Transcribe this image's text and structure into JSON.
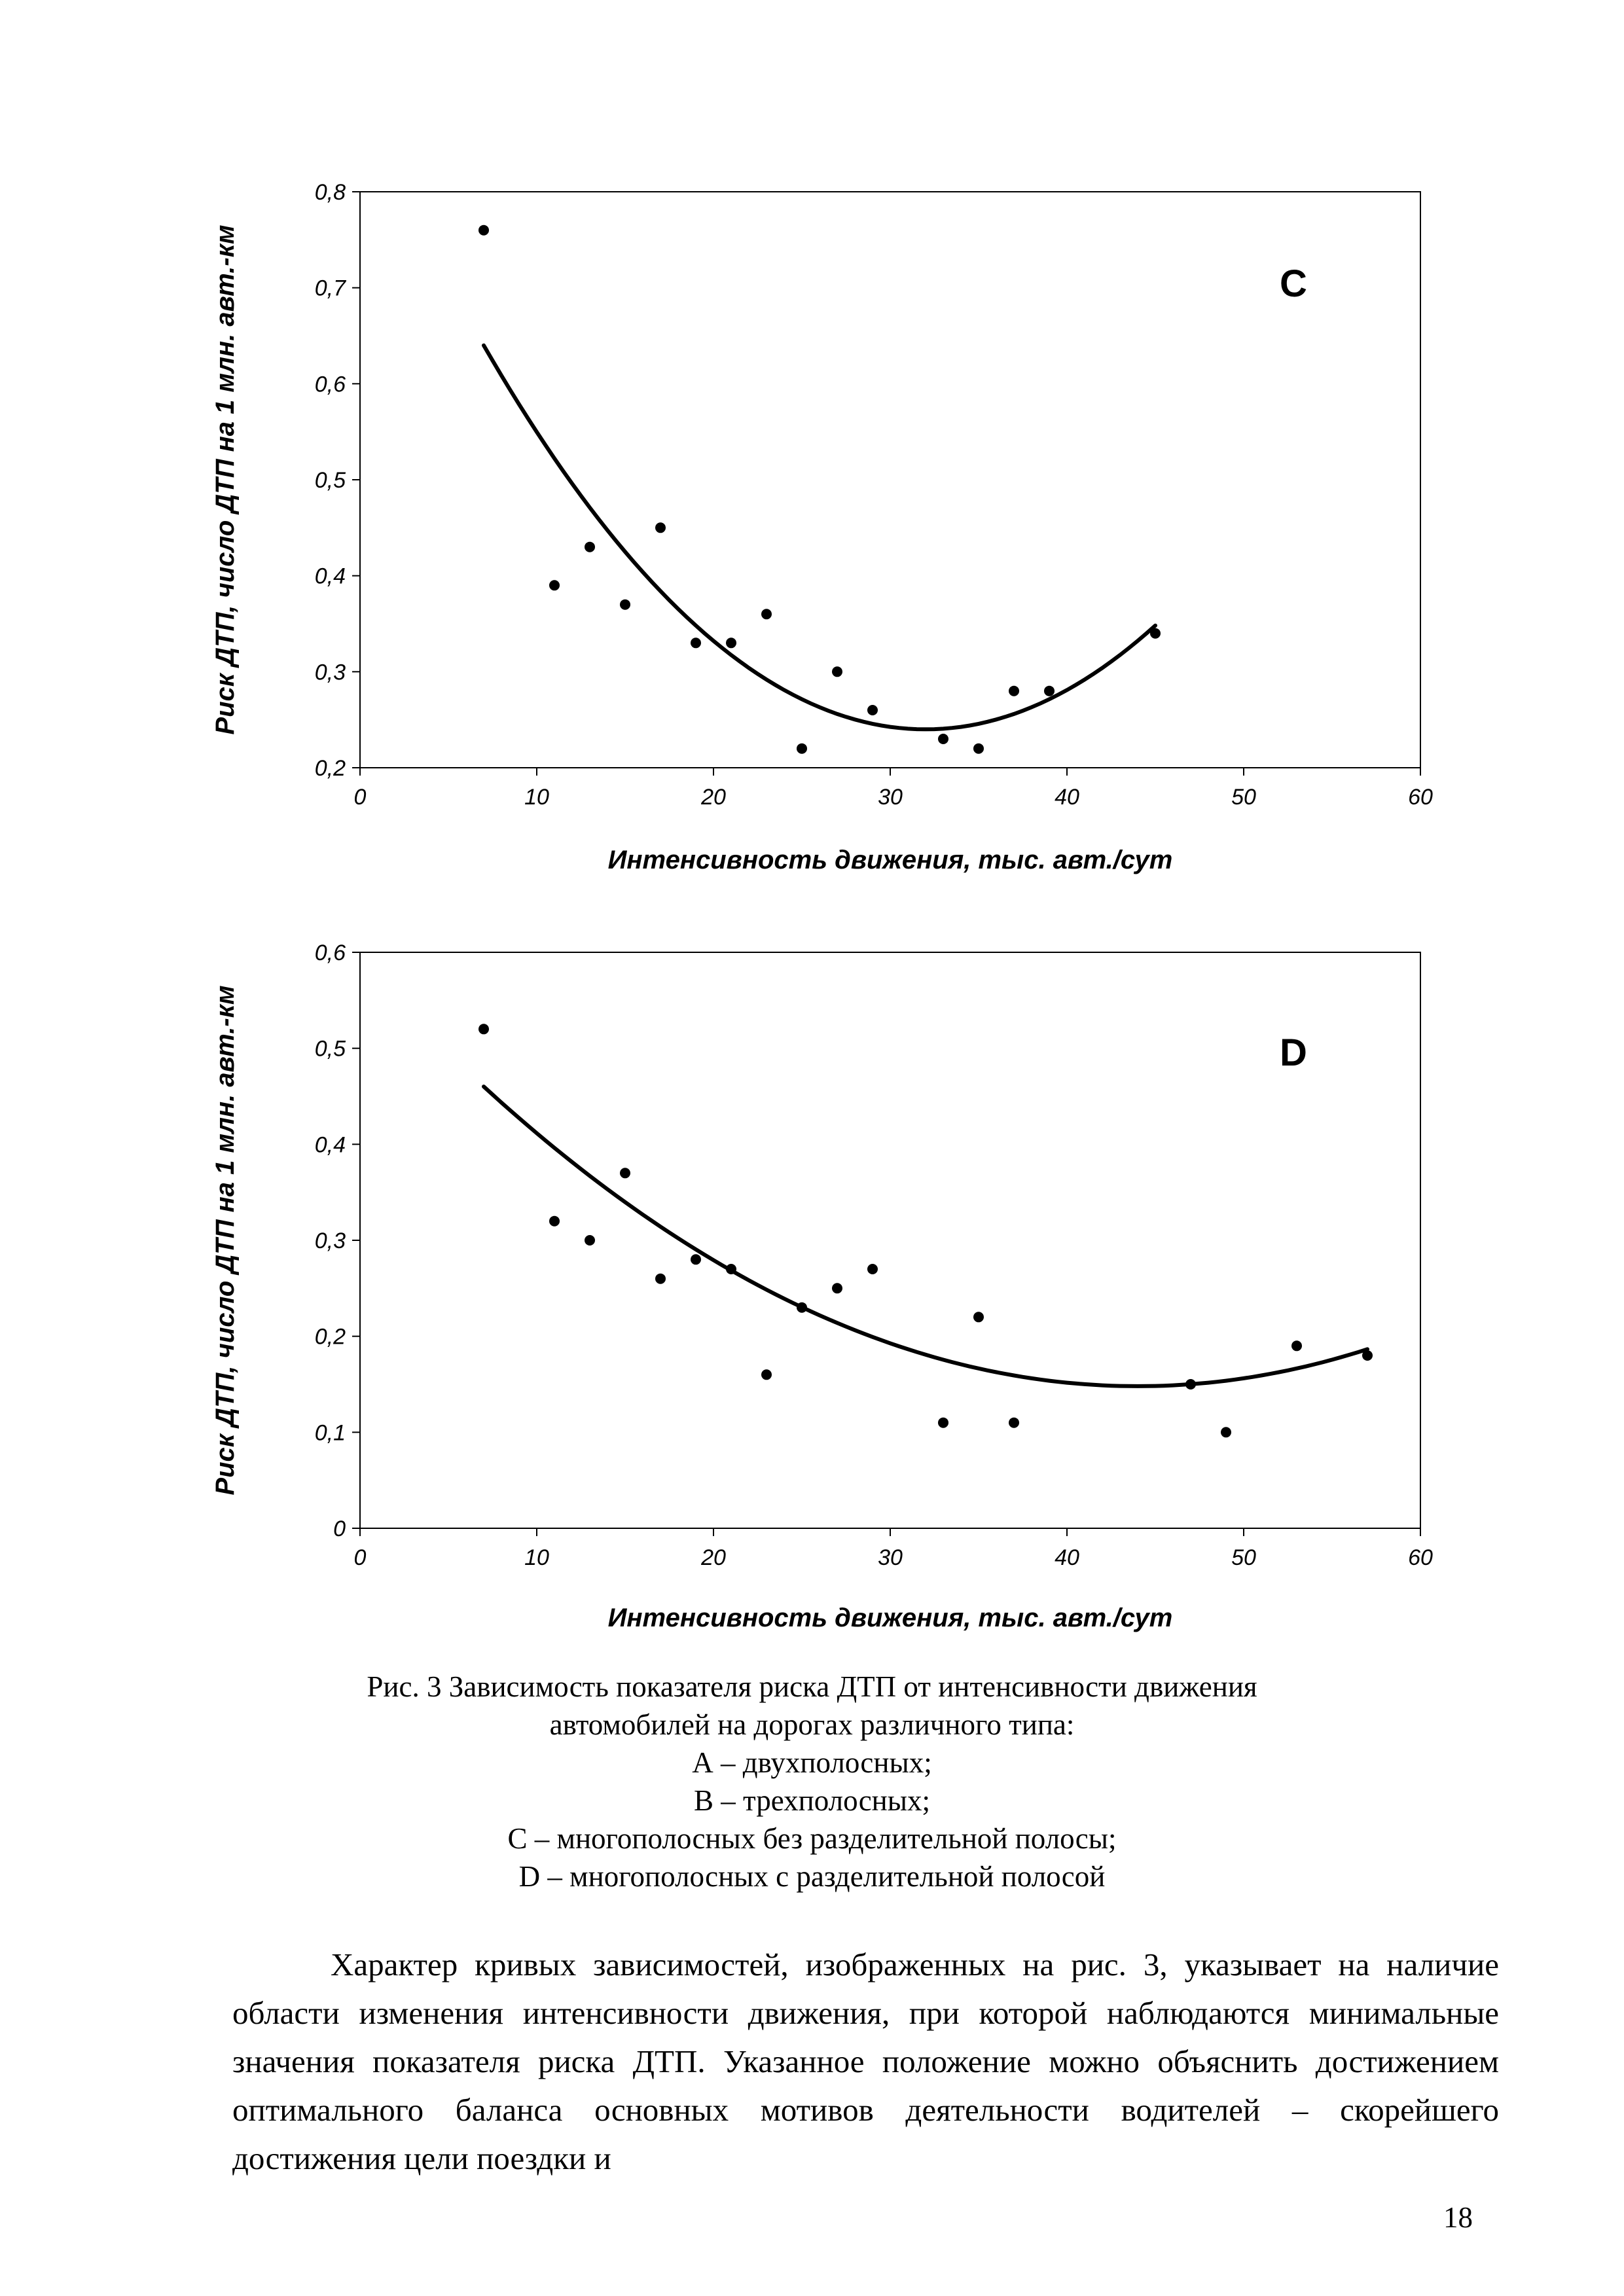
{
  "page": {
    "number": "18"
  },
  "chart_data": [
    {
      "type": "scatter",
      "panel_label": "C",
      "title": "",
      "xlabel": "Интенсивность движения, тыс. авт./сут",
      "ylabel": "Риск  ДТП, число ДТП на 1 млн. авт.-км",
      "xlim": [
        0,
        60
      ],
      "ylim": [
        0.2,
        0.8
      ],
      "grid": false,
      "legend": "none",
      "xtick_values": [
        0,
        10,
        20,
        30,
        40,
        50,
        60
      ],
      "xtick_labels": [
        "0",
        "10",
        "20",
        "30",
        "40",
        "50",
        "60"
      ],
      "ytick_values": [
        0.2,
        0.3,
        0.4,
        0.5,
        0.6,
        0.7,
        0.8
      ],
      "ytick_labels": [
        "0,2",
        "0,3",
        "0,4",
        "0,5",
        "0,6",
        "0,7",
        "0,8"
      ],
      "points": [
        [
          7,
          0.76
        ],
        [
          11,
          0.39
        ],
        [
          13,
          0.43
        ],
        [
          15,
          0.37
        ],
        [
          17,
          0.45
        ],
        [
          19,
          0.33
        ],
        [
          21,
          0.33
        ],
        [
          23,
          0.36
        ],
        [
          25,
          0.22
        ],
        [
          27,
          0.3
        ],
        [
          29,
          0.26
        ],
        [
          33,
          0.23
        ],
        [
          35,
          0.22
        ],
        [
          37,
          0.28
        ],
        [
          39,
          0.28
        ],
        [
          45,
          0.34
        ]
      ],
      "trend_curve": {
        "shape": "quadratic",
        "vertex_x": 32,
        "vertex_y": 0.24,
        "a": 0.00064,
        "x_start": 7,
        "x_end": 45
      }
    },
    {
      "type": "scatter",
      "panel_label": "D",
      "title": "",
      "xlabel": "Интенсивность движения, тыс. авт./сут",
      "ylabel": "Риск  ДТП, число ДТП на 1 млн. авт.-км",
      "xlim": [
        0,
        60
      ],
      "ylim": [
        0,
        0.6
      ],
      "grid": false,
      "legend": "none",
      "xtick_values": [
        0,
        10,
        20,
        30,
        40,
        50,
        60
      ],
      "xtick_labels": [
        "0",
        "10",
        "20",
        "30",
        "40",
        "50",
        "60"
      ],
      "ytick_values": [
        0,
        0.1,
        0.2,
        0.3,
        0.4,
        0.5,
        0.6
      ],
      "ytick_labels": [
        "0",
        "0,1",
        "0,2",
        "0,3",
        "0,4",
        "0,5",
        "0,6"
      ],
      "points": [
        [
          7,
          0.52
        ],
        [
          11,
          0.32
        ],
        [
          13,
          0.3
        ],
        [
          15,
          0.37
        ],
        [
          17,
          0.26
        ],
        [
          19,
          0.28
        ],
        [
          21,
          0.27
        ],
        [
          23,
          0.16
        ],
        [
          25,
          0.23
        ],
        [
          27,
          0.25
        ],
        [
          29,
          0.27
        ],
        [
          33,
          0.11
        ],
        [
          35,
          0.22
        ],
        [
          37,
          0.11
        ],
        [
          47,
          0.15
        ],
        [
          49,
          0.1
        ],
        [
          53,
          0.19
        ],
        [
          57,
          0.18
        ]
      ],
      "trend_curve": {
        "shape": "quadratic",
        "vertex_x": 44,
        "vertex_y": 0.148,
        "a": 0.000228,
        "x_start": 7,
        "x_end": 57
      }
    }
  ],
  "caption": {
    "lines": [
      "Рис. 3 Зависимость показателя риска ДТП от  интенсивности движения",
      "автомобилей на дорогах различного типа:",
      "А – двухполосных;",
      "В – трехполосных;",
      "С – многополосных без разделительной полосы;",
      "D – многополосных с разделительной полосой"
    ]
  },
  "paragraph": {
    "text": "Характер кривых зависимостей, изображенных на рис. 3, указывает на наличие области изменения интенсивности движения, при которой наблюдаются минимальные значения показателя риска ДТП. Указанное положение можно объяснить достижением оптимального баланса основных мотивов деятельности водителей – скорейшего достижения цели поездки и"
  }
}
